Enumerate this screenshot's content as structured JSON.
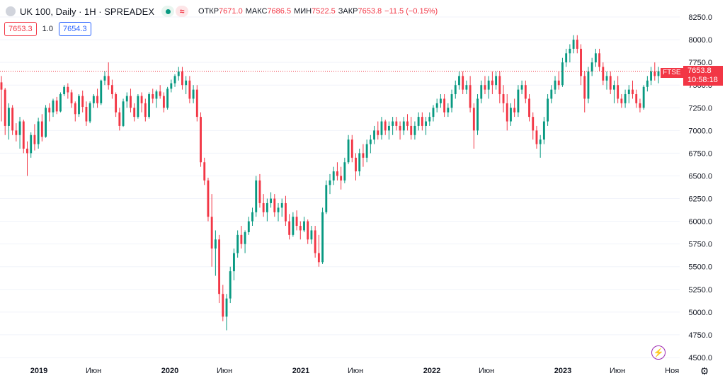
{
  "header": {
    "title": "UK 100, Daily · 1H · SPREADEX",
    "open_label": "ОТКР",
    "open_value": "7671.0",
    "high_label": "МАКС",
    "high_value": "7686.5",
    "low_label": "МИН",
    "low_value": "7522.5",
    "close_label": "ЗАКР",
    "close_value": "7653.8",
    "change": "−11.5 (−0.15%)",
    "wave_icon": "≈"
  },
  "prices": {
    "sell": "7653.3",
    "spread": "1.0",
    "buy": "7654.3"
  },
  "last_price": {
    "symbol": "FTSE",
    "value": "7653.8",
    "countdown": "10:58:18"
  },
  "icons": {
    "symbol": "symbol-logo-icon",
    "bolt": "⚡",
    "gear": "⚙"
  },
  "colors": {
    "up": "#089981",
    "down": "#f23645",
    "axis_text": "#131722",
    "grid": "#f0f3fa"
  },
  "chart_data": {
    "type": "candlestick",
    "ylim": [
      4500,
      8300
    ],
    "y_ticks": [
      8250,
      8000,
      7750,
      7500,
      7250,
      7000,
      6750,
      6500,
      6250,
      6000,
      5750,
      5500,
      5250,
      5000,
      4750,
      4500
    ],
    "y_tick_labels": [
      "8250.0",
      "8000.0",
      "7750.0",
      "7500.0",
      "7250.0",
      "7000.0",
      "6750.0",
      "6500.0",
      "6250.0",
      "6000.0",
      "5750.0",
      "5500.0",
      "5250.0",
      "5000.0",
      "4750.0",
      "4500.0"
    ],
    "x_ticks": [
      {
        "label": "2019",
        "date": "2019-01",
        "bold": true
      },
      {
        "label": "Июн",
        "date": "2019-06",
        "bold": false
      },
      {
        "label": "2020",
        "date": "2020-01",
        "bold": true
      },
      {
        "label": "Июн",
        "date": "2020-06",
        "bold": false
      },
      {
        "label": "2021",
        "date": "2021-01",
        "bold": true
      },
      {
        "label": "Июн",
        "date": "2021-06",
        "bold": false
      },
      {
        "label": "2022",
        "date": "2022-01",
        "bold": true
      },
      {
        "label": "Июн",
        "date": "2022-06",
        "bold": false
      },
      {
        "label": "2023",
        "date": "2023-01",
        "bold": true
      },
      {
        "label": "Июн",
        "date": "2023-06",
        "bold": false
      },
      {
        "label": "Ноя",
        "date": "2023-11",
        "bold": false
      }
    ],
    "last_close": 7653.8,
    "series": [
      {
        "name": "",
        "values": [
          [
            7530,
            7600,
            7100,
            7450
          ],
          [
            7450,
            7470,
            6950,
            7050
          ],
          [
            7050,
            7300,
            6900,
            7250
          ],
          [
            7250,
            7280,
            6950,
            7000
          ],
          [
            7000,
            7080,
            6880,
            6950
          ],
          [
            6950,
            7150,
            6800,
            7100
          ],
          [
            7100,
            7120,
            6750,
            6800
          ],
          [
            6800,
            6880,
            6500,
            6750
          ],
          [
            6750,
            6980,
            6700,
            6950
          ],
          [
            6950,
            7070,
            6780,
            6850
          ],
          [
            6850,
            7140,
            6800,
            7100
          ],
          [
            7100,
            7180,
            6880,
            6930
          ],
          [
            6930,
            7280,
            6920,
            7250
          ],
          [
            7250,
            7300,
            7100,
            7200
          ],
          [
            7200,
            7350,
            7150,
            7330
          ],
          [
            7330,
            7370,
            7180,
            7210
          ],
          [
            7210,
            7420,
            7200,
            7400
          ],
          [
            7400,
            7500,
            7380,
            7480
          ],
          [
            7480,
            7520,
            7350,
            7420
          ],
          [
            7420,
            7450,
            7250,
            7300
          ],
          [
            7300,
            7320,
            7100,
            7180
          ],
          [
            7180,
            7400,
            7150,
            7380
          ],
          [
            7380,
            7440,
            7200,
            7260
          ],
          [
            7260,
            7320,
            7050,
            7100
          ],
          [
            7100,
            7320,
            7080,
            7300
          ],
          [
            7300,
            7400,
            7250,
            7380
          ],
          [
            7380,
            7460,
            7250,
            7300
          ],
          [
            7300,
            7560,
            7280,
            7550
          ],
          [
            7550,
            7650,
            7500,
            7600
          ],
          [
            7600,
            7750,
            7450,
            7500
          ],
          [
            7500,
            7560,
            7350,
            7400
          ],
          [
            7400,
            7420,
            7150,
            7200
          ],
          [
            7200,
            7250,
            7000,
            7050
          ],
          [
            7050,
            7350,
            7040,
            7320
          ],
          [
            7320,
            7420,
            7250,
            7380
          ],
          [
            7380,
            7460,
            7200,
            7250
          ],
          [
            7250,
            7300,
            7100,
            7150
          ],
          [
            7150,
            7400,
            7130,
            7380
          ],
          [
            7380,
            7420,
            7200,
            7300
          ],
          [
            7300,
            7350,
            7100,
            7150
          ],
          [
            7150,
            7420,
            7130,
            7400
          ],
          [
            7400,
            7460,
            7300,
            7350
          ],
          [
            7350,
            7450,
            7250,
            7430
          ],
          [
            7430,
            7500,
            7350,
            7380
          ],
          [
            7380,
            7420,
            7200,
            7250
          ],
          [
            7250,
            7480,
            7230,
            7460
          ],
          [
            7460,
            7560,
            7420,
            7520
          ],
          [
            7520,
            7620,
            7480,
            7600
          ],
          [
            7600,
            7700,
            7550,
            7650
          ],
          [
            7650,
            7700,
            7450,
            7500
          ],
          [
            7500,
            7600,
            7400,
            7550
          ],
          [
            7550,
            7600,
            7300,
            7350
          ],
          [
            7350,
            7500,
            7300,
            7450
          ],
          [
            7450,
            7500,
            7100,
            7150
          ],
          [
            7150,
            7200,
            6600,
            6650
          ],
          [
            6650,
            6700,
            6400,
            6450
          ],
          [
            6450,
            6480,
            6000,
            6050
          ],
          [
            6050,
            6300,
            5500,
            5700
          ],
          [
            5700,
            5900,
            5400,
            5800
          ],
          [
            5800,
            5850,
            5100,
            5200
          ],
          [
            5200,
            5300,
            4900,
            4950
          ],
          [
            4950,
            5200,
            4800,
            5150
          ],
          [
            5150,
            5500,
            5100,
            5450
          ],
          [
            5450,
            5700,
            5350,
            5650
          ],
          [
            5650,
            5900,
            5600,
            5850
          ],
          [
            5850,
            5950,
            5700,
            5750
          ],
          [
            5750,
            5900,
            5650,
            5880
          ],
          [
            5880,
            6050,
            5850,
            6000
          ],
          [
            6000,
            6150,
            5950,
            6100
          ],
          [
            6100,
            6500,
            6050,
            6450
          ],
          [
            6450,
            6520,
            6150,
            6200
          ],
          [
            6200,
            6300,
            6050,
            6100
          ],
          [
            6100,
            6250,
            6000,
            6200
          ],
          [
            6200,
            6320,
            6150,
            6250
          ],
          [
            6250,
            6300,
            6050,
            6100
          ],
          [
            6100,
            6200,
            6000,
            6150
          ],
          [
            6150,
            6250,
            6050,
            6200
          ],
          [
            6200,
            6280,
            5950,
            6000
          ],
          [
            6000,
            6080,
            5800,
            5850
          ],
          [
            5850,
            6100,
            5830,
            6050
          ],
          [
            6050,
            6120,
            5900,
            5950
          ],
          [
            5950,
            6000,
            5800,
            5900
          ],
          [
            5900,
            6050,
            5880,
            6000
          ],
          [
            6000,
            6020,
            5750,
            5800
          ],
          [
            5800,
            5950,
            5750,
            5900
          ],
          [
            5900,
            5950,
            5600,
            5650
          ],
          [
            5650,
            5850,
            5500,
            5550
          ],
          [
            5550,
            6150,
            5530,
            6100
          ],
          [
            6100,
            6450,
            6080,
            6400
          ],
          [
            6400,
            6520,
            6300,
            6450
          ],
          [
            6450,
            6600,
            6400,
            6550
          ],
          [
            6550,
            6650,
            6450,
            6500
          ],
          [
            6500,
            6600,
            6350,
            6450
          ],
          [
            6450,
            6700,
            6420,
            6650
          ],
          [
            6650,
            6950,
            6630,
            6900
          ],
          [
            6900,
            6950,
            6650,
            6700
          ],
          [
            6700,
            6750,
            6450,
            6550
          ],
          [
            6550,
            6800,
            6500,
            6750
          ],
          [
            6750,
            6850,
            6600,
            6700
          ],
          [
            6700,
            6900,
            6650,
            6850
          ],
          [
            6850,
            6950,
            6750,
            6900
          ],
          [
            6900,
            7050,
            6850,
            7000
          ],
          [
            7000,
            7100,
            6900,
            6950
          ],
          [
            6950,
            7150,
            6900,
            7100
          ],
          [
            7100,
            7120,
            6950,
            7000
          ],
          [
            7000,
            7100,
            6900,
            7050
          ],
          [
            7050,
            7150,
            6950,
            7100
          ],
          [
            7100,
            7150,
            7000,
            7050
          ],
          [
            7050,
            7100,
            6900,
            7000
          ],
          [
            7000,
            7150,
            6950,
            7100
          ],
          [
            7100,
            7180,
            7000,
            7050
          ],
          [
            7050,
            7150,
            6900,
            6950
          ],
          [
            6950,
            7100,
            6900,
            7050
          ],
          [
            7050,
            7200,
            7000,
            7150
          ],
          [
            7150,
            7200,
            7000,
            7050
          ],
          [
            7050,
            7150,
            6950,
            7100
          ],
          [
            7100,
            7200,
            7050,
            7150
          ],
          [
            7150,
            7280,
            7100,
            7250
          ],
          [
            7250,
            7350,
            7200,
            7300
          ],
          [
            7300,
            7400,
            7250,
            7350
          ],
          [
            7350,
            7400,
            7150,
            7200
          ],
          [
            7200,
            7300,
            7150,
            7250
          ],
          [
            7250,
            7450,
            7200,
            7400
          ],
          [
            7400,
            7550,
            7350,
            7500
          ],
          [
            7500,
            7650,
            7450,
            7600
          ],
          [
            7600,
            7650,
            7400,
            7450
          ],
          [
            7450,
            7550,
            7400,
            7500
          ],
          [
            7500,
            7600,
            7200,
            7250
          ],
          [
            7250,
            7300,
            6800,
            7000
          ],
          [
            7000,
            7400,
            6950,
            7350
          ],
          [
            7350,
            7550,
            7300,
            7500
          ],
          [
            7500,
            7600,
            7400,
            7450
          ],
          [
            7450,
            7600,
            7350,
            7550
          ],
          [
            7550,
            7650,
            7400,
            7500
          ],
          [
            7500,
            7650,
            7450,
            7600
          ],
          [
            7600,
            7650,
            7300,
            7400
          ],
          [
            7400,
            7500,
            7200,
            7300
          ],
          [
            7300,
            7400,
            7000,
            7100
          ],
          [
            7100,
            7300,
            7050,
            7250
          ],
          [
            7250,
            7350,
            7150,
            7200
          ],
          [
            7200,
            7500,
            7150,
            7450
          ],
          [
            7450,
            7550,
            7400,
            7500
          ],
          [
            7500,
            7550,
            7300,
            7350
          ],
          [
            7350,
            7400,
            7100,
            7150
          ],
          [
            7150,
            7200,
            6900,
            7000
          ],
          [
            7000,
            7050,
            6800,
            6850
          ],
          [
            6850,
            6950,
            6700,
            6900
          ],
          [
            6900,
            7150,
            6850,
            7100
          ],
          [
            7100,
            7400,
            7050,
            7350
          ],
          [
            7350,
            7500,
            7300,
            7450
          ],
          [
            7450,
            7600,
            7400,
            7550
          ],
          [
            7550,
            7650,
            7450,
            7500
          ],
          [
            7500,
            7800,
            7480,
            7750
          ],
          [
            7750,
            7900,
            7700,
            7850
          ],
          [
            7850,
            7950,
            7750,
            7900
          ],
          [
            7900,
            8050,
            7850,
            8000
          ],
          [
            8000,
            8050,
            7850,
            7900
          ],
          [
            7900,
            7950,
            7500,
            7600
          ],
          [
            7600,
            7650,
            7200,
            7350
          ],
          [
            7350,
            7700,
            7300,
            7650
          ],
          [
            7650,
            7800,
            7600,
            7750
          ],
          [
            7750,
            7900,
            7700,
            7850
          ],
          [
            7850,
            7900,
            7650,
            7700
          ],
          [
            7700,
            7750,
            7500,
            7550
          ],
          [
            7550,
            7650,
            7450,
            7600
          ],
          [
            7600,
            7650,
            7400,
            7450
          ],
          [
            7450,
            7550,
            7300,
            7500
          ],
          [
            7500,
            7600,
            7300,
            7350
          ],
          [
            7350,
            7400,
            7250,
            7300
          ],
          [
            7300,
            7450,
            7250,
            7400
          ],
          [
            7400,
            7500,
            7300,
            7450
          ],
          [
            7450,
            7550,
            7350,
            7400
          ],
          [
            7400,
            7450,
            7250,
            7300
          ],
          [
            7300,
            7350,
            7200,
            7250
          ],
          [
            7250,
            7500,
            7230,
            7480
          ],
          [
            7480,
            7600,
            7430,
            7550
          ],
          [
            7550,
            7700,
            7500,
            7650
          ],
          [
            7650,
            7750,
            7550,
            7600
          ],
          [
            7600,
            7700,
            7520,
            7653.8
          ]
        ]
      }
    ]
  }
}
